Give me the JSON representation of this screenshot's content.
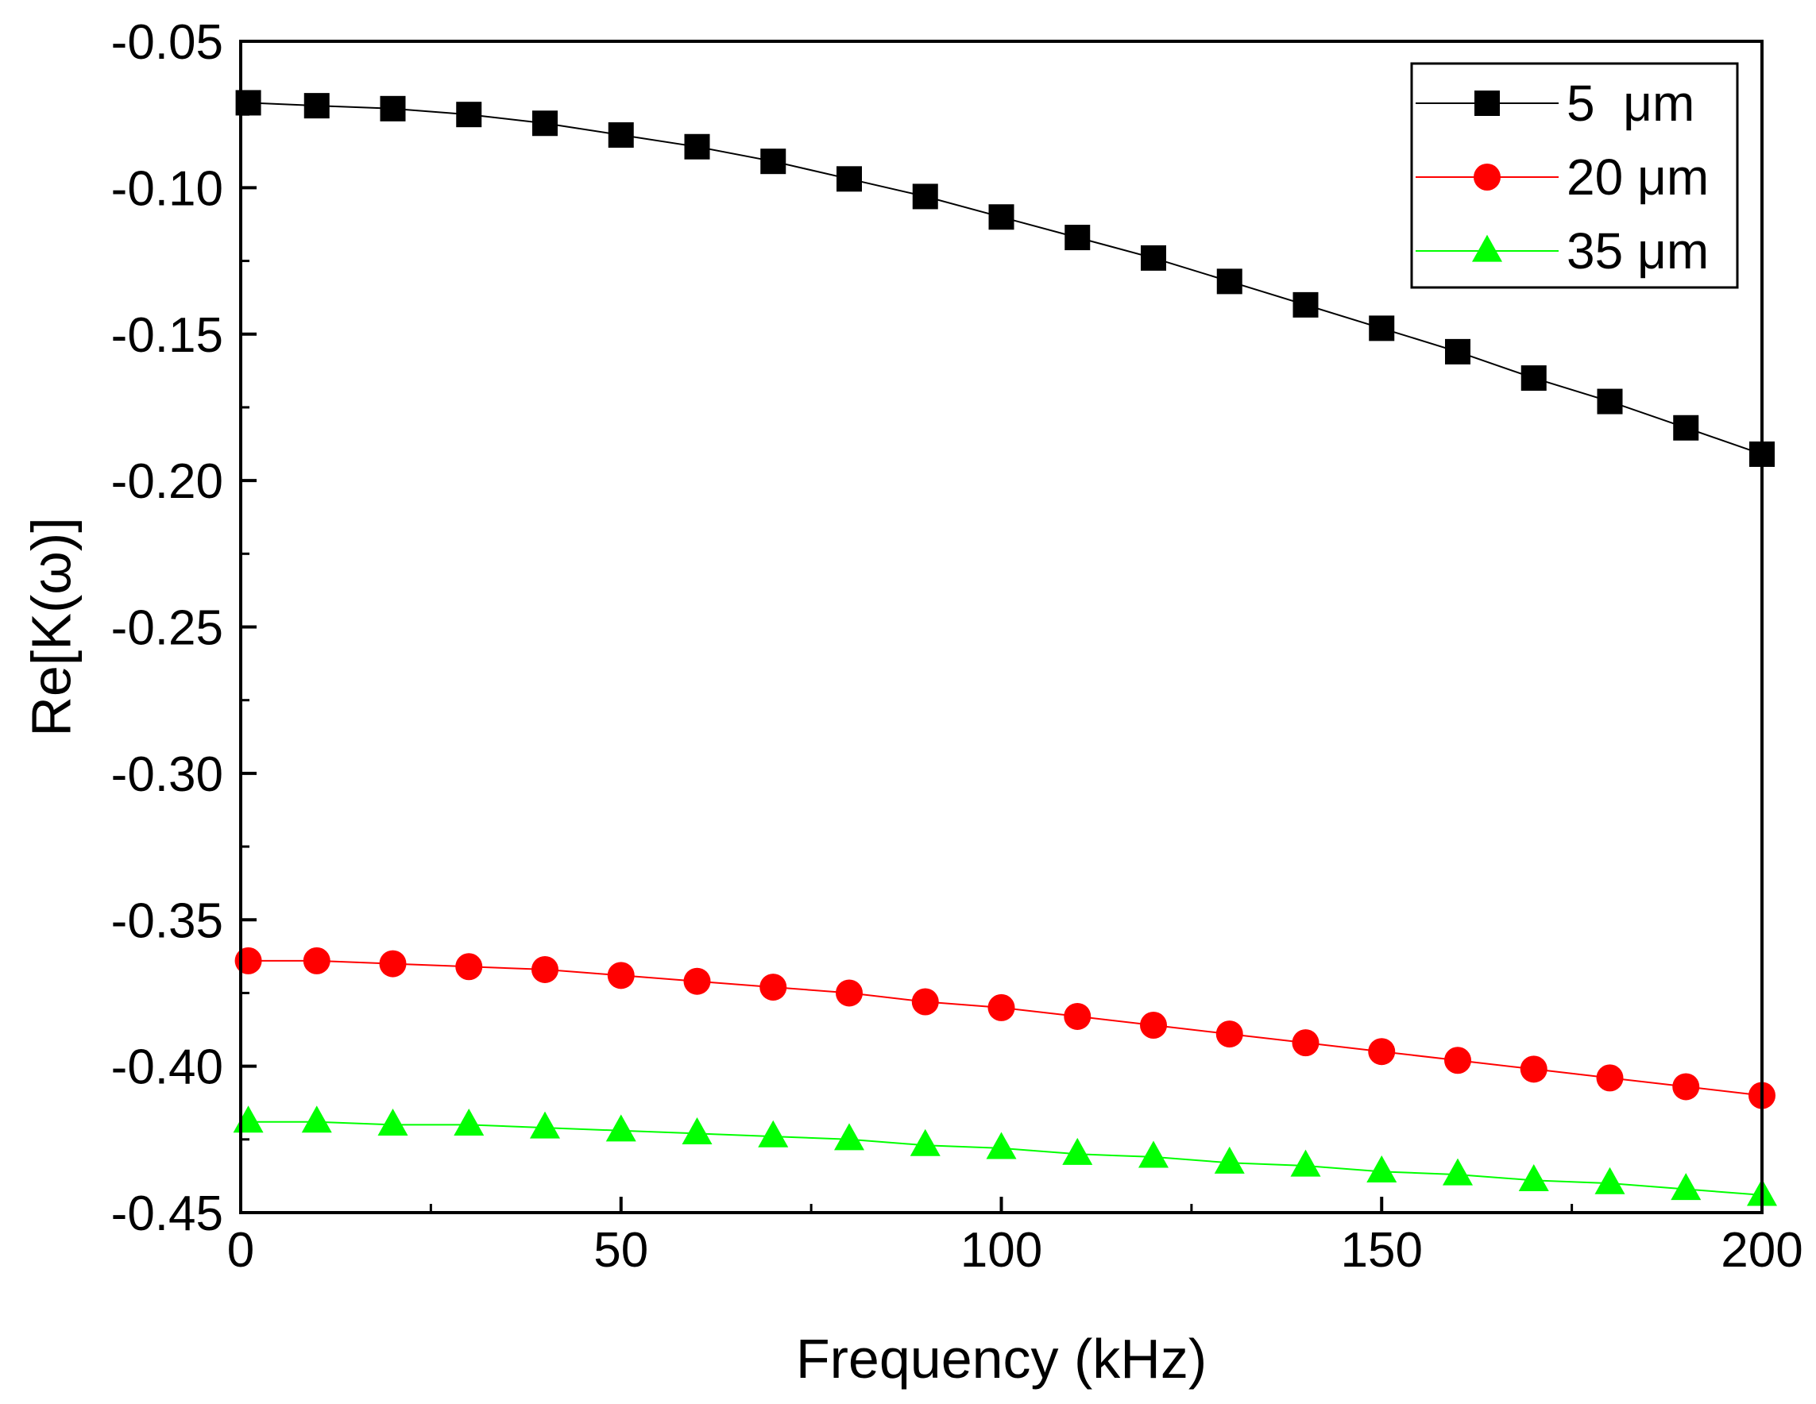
{
  "chart_data": {
    "type": "line",
    "title": "",
    "xlabel": "Frequency (kHz)",
    "ylabel": "Re[K(ω)]",
    "xlim": [
      0,
      200
    ],
    "ylim": [
      -0.45,
      -0.05
    ],
    "x_ticks": [
      "0",
      "50",
      "100",
      "150",
      "200"
    ],
    "y_ticks": [
      "-0.05",
      "-0.10",
      "-0.15",
      "-0.20",
      "-0.25",
      "-0.30",
      "-0.35",
      "-0.40",
      "-0.45"
    ],
    "grid": false,
    "legend_position": "top-right",
    "x": [
      1,
      10,
      20,
      30,
      40,
      50,
      60,
      70,
      80,
      90,
      100,
      110,
      120,
      130,
      140,
      150,
      160,
      170,
      180,
      190,
      200
    ],
    "series": [
      {
        "name": "5  μm",
        "color": "#000000",
        "marker": "square",
        "values": [
          -0.071,
          -0.072,
          -0.073,
          -0.075,
          -0.078,
          -0.082,
          -0.086,
          -0.091,
          -0.097,
          -0.103,
          -0.11,
          -0.117,
          -0.124,
          -0.132,
          -0.14,
          -0.148,
          -0.156,
          -0.165,
          -0.173,
          -0.182,
          -0.191
        ]
      },
      {
        "name": "20 μm",
        "color": "#ff0000",
        "marker": "circle",
        "values": [
          -0.364,
          -0.364,
          -0.365,
          -0.366,
          -0.367,
          -0.369,
          -0.371,
          -0.373,
          -0.375,
          -0.378,
          -0.38,
          -0.383,
          -0.386,
          -0.389,
          -0.392,
          -0.395,
          -0.398,
          -0.401,
          -0.404,
          -0.407,
          -0.41
        ]
      },
      {
        "name": "35 μm",
        "color": "#00ff00",
        "marker": "triangle",
        "values": [
          -0.419,
          -0.419,
          -0.42,
          -0.42,
          -0.421,
          -0.422,
          -0.423,
          -0.424,
          -0.425,
          -0.427,
          -0.428,
          -0.43,
          -0.431,
          -0.433,
          -0.434,
          -0.436,
          -0.437,
          -0.439,
          -0.44,
          -0.442,
          -0.444
        ]
      }
    ]
  }
}
